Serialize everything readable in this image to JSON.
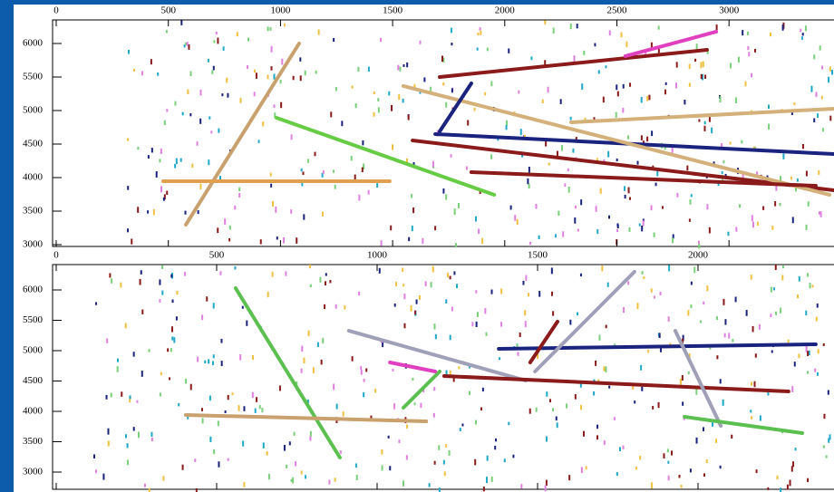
{
  "chart_data": [
    {
      "type": "line",
      "xlim": [
        0,
        3468
      ],
      "ylim": [
        2950,
        6350
      ],
      "xticks": [
        0,
        500,
        1000,
        1500,
        2000,
        2500,
        3000
      ],
      "yticks": [
        3000,
        3500,
        4000,
        4500,
        5000,
        5500,
        6000
      ],
      "series": [
        {
          "color": "#c9a16e",
          "x": [
            578,
            1083
          ],
          "values": [
            3297,
            6000
          ]
        },
        {
          "color": "#66cc44",
          "x": [
            982,
            1953
          ],
          "values": [
            4892,
            3743
          ]
        },
        {
          "color": "#8b1a1a",
          "x": [
            1589,
            3468
          ],
          "values": [
            4554,
            3811
          ]
        },
        {
          "color": "#1a237e",
          "x": [
            1690,
            3468
          ],
          "values": [
            4649,
            4351
          ]
        },
        {
          "color": "#d4b07a",
          "x": [
            1548,
            3448
          ],
          "values": [
            5365,
            3743
          ]
        },
        {
          "color": "#d4b07a",
          "x": [
            2296,
            3468
          ],
          "values": [
            4824,
            5027
          ]
        },
        {
          "color": "#8b1a1a",
          "x": [
            1710,
            2902
          ],
          "values": [
            5500,
            5905
          ]
        },
        {
          "color": "#e040c0",
          "x": [
            2538,
            2943
          ],
          "values": [
            5811,
            6176
          ]
        },
        {
          "color": "#1a237e",
          "x": [
            1710,
            1851
          ],
          "values": [
            4689,
            5405
          ]
        },
        {
          "color": "#8b1a1a",
          "x": [
            1851,
            3387
          ],
          "values": [
            4081,
            3878
          ]
        },
        {
          "color": "#e0a050",
          "x": [
            477,
            1487
          ],
          "values": [
            3946,
            3946
          ]
        }
      ]
    },
    {
      "type": "line",
      "xlim": [
        0,
        2424
      ],
      "ylim": [
        2720,
        6450
      ],
      "xticks": [
        0,
        500,
        1000,
        1500,
        2000
      ],
      "yticks": [
        3000,
        3500,
        4000,
        4500,
        5000,
        5500,
        6000
      ],
      "series": [
        {
          "color": "#5cc050",
          "x": [
            559,
            884
          ],
          "values": [
            6030,
            3239
          ]
        },
        {
          "color": "#c9a16e",
          "x": [
            404,
            1153
          ],
          "values": [
            3940,
            3836
          ]
        },
        {
          "color": "#a0a0b8",
          "x": [
            912,
            1463
          ],
          "values": [
            5328,
            4507
          ]
        },
        {
          "color": "#8b1a1a",
          "x": [
            1209,
            2282
          ],
          "values": [
            4582,
            4328
          ]
        },
        {
          "color": "#1a237e",
          "x": [
            1379,
            2367
          ],
          "values": [
            5030,
            5104
          ]
        },
        {
          "color": "#a0a0b8",
          "x": [
            1492,
            1802
          ],
          "values": [
            4657,
            6299
          ]
        },
        {
          "color": "#a0a0b8",
          "x": [
            1929,
            2071
          ],
          "values": [
            5328,
            3761
          ]
        },
        {
          "color": "#5cc050",
          "x": [
            1958,
            2325
          ],
          "values": [
            3910,
            3642
          ]
        },
        {
          "color": "#5cc050",
          "x": [
            1082,
            1195
          ],
          "values": [
            4060,
            4657
          ]
        },
        {
          "color": "#8b1a1a",
          "x": [
            1477,
            1562
          ],
          "values": [
            4806,
            5478
          ]
        },
        {
          "color": "#e040c0",
          "x": [
            1040,
            1181
          ],
          "values": [
            4806,
            4657
          ]
        }
      ]
    }
  ]
}
